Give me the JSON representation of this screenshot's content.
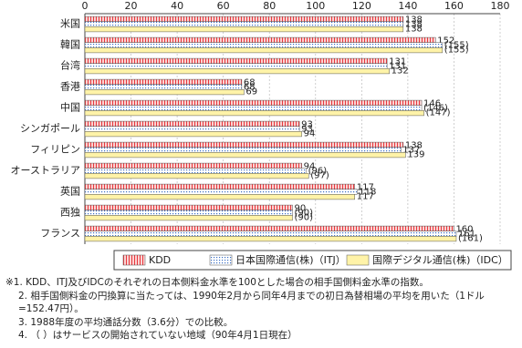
{
  "chart_data": {
    "type": "bar",
    "orientation": "horizontal",
    "categories": [
      "米国",
      "韓国",
      "台湾",
      "香港",
      "中国",
      "シンガポール",
      "フィリピン",
      "オーストラリア",
      "英国",
      "西独",
      "フランス"
    ],
    "series": [
      {
        "name": "KDD",
        "color": "#e8383d",
        "values": [
          138,
          152,
          131,
          68,
          146,
          93,
          138,
          94,
          117,
          90,
          160
        ]
      },
      {
        "name": "日本国際通信(株)（ITJ）",
        "color": "#3b6fc4",
        "values": [
          138,
          155,
          131,
          68,
          146,
          93,
          137,
          96,
          118,
          90,
          161
        ],
        "value_labels": [
          "138",
          "(155)",
          "131",
          "68",
          "(146)",
          "93",
          "137",
          "(96)",
          "118",
          "(90)",
          "161"
        ]
      },
      {
        "name": "国際デジタル通信(株)（IDC）",
        "color": "#fff3a8",
        "values": [
          138,
          155,
          132,
          69,
          147,
          94,
          139,
          97,
          117,
          90,
          161
        ],
        "value_labels": [
          "138",
          "(155)",
          "132",
          "69",
          "(147)",
          "94",
          "139",
          "(97)",
          "117",
          "(90)",
          "(161)"
        ]
      }
    ],
    "xlim": [
      0,
      180
    ],
    "xticks": [
      0,
      20,
      40,
      60,
      80,
      100,
      120,
      140,
      160,
      180
    ],
    "grid": true
  },
  "notes": [
    "※1. KDD、ITJ及びIDCのそれぞれの日本側料金水準を100とした場合の相手国側料金水準の指数。",
    "2. 相手国側料金の円換算に当たっては、1990年2月から同年4月までの初日為替相場の平均を用いた（1ドル=152.47円）。",
    "3. 1988年度の平均通話分数（3.6分）での比較。",
    "4. （ ）はサービスの開始されていない地域（90年4月1日現在）"
  ]
}
